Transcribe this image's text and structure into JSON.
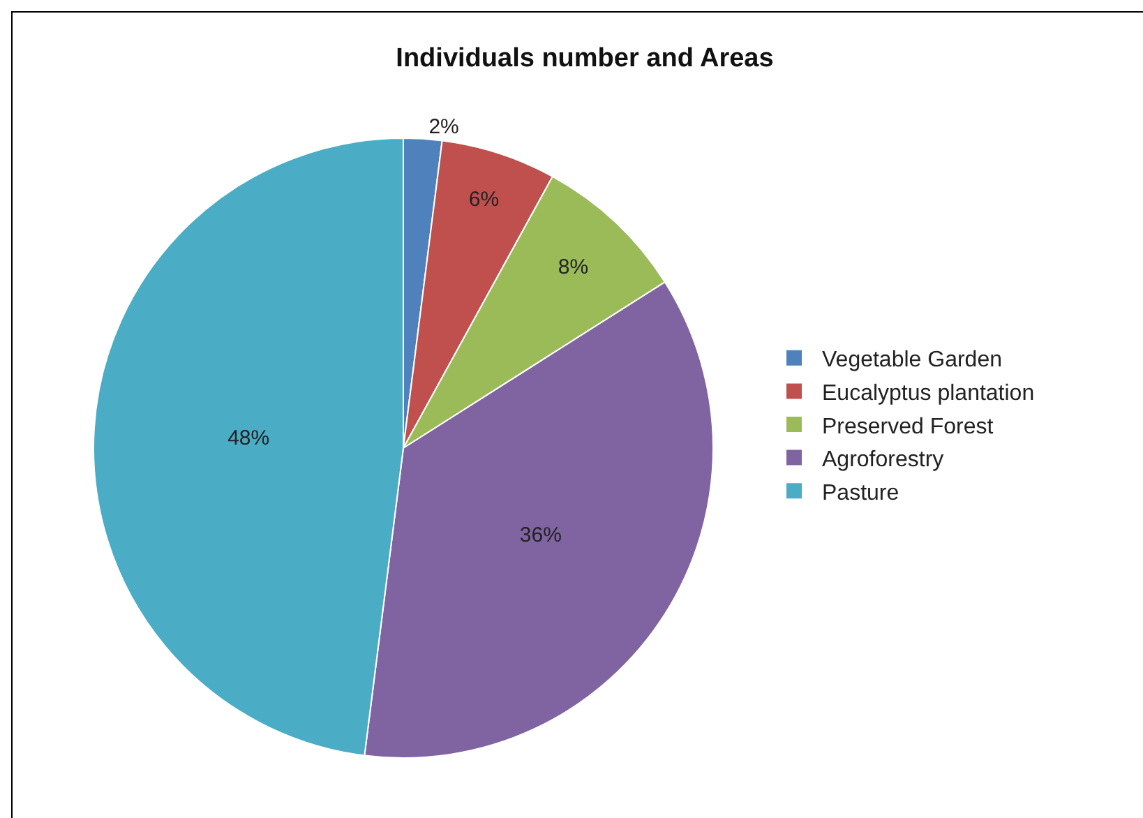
{
  "chart_data": {
    "type": "pie",
    "title": "Individuals number and Areas",
    "categories": [
      "Vegetable Garden",
      "Eucalyptus plantation",
      "Preserved Forest",
      "Agroforestry",
      "Pasture"
    ],
    "values": [
      2,
      6,
      8,
      36,
      48
    ],
    "value_labels": [
      "2%",
      "6%",
      "8%",
      "36%",
      "48%"
    ],
    "colors": [
      "#4f81bd",
      "#c0504d",
      "#9bbb59",
      "#8064a2",
      "#4bacc6"
    ],
    "legend": "right"
  }
}
